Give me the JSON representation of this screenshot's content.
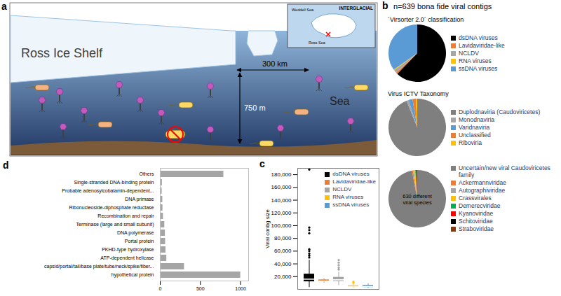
{
  "diagram": {
    "panel": "a",
    "ice_shelf_label": "Ross Ice Shelf",
    "sea_label": "Sea",
    "distance_label": "300 km",
    "depth_label": "750 m",
    "inset": {
      "title": "INTERGLACIAL",
      "labels": [
        "Weddell Sea",
        "Ross Sea"
      ]
    }
  },
  "panel_b": {
    "panel": "b",
    "title": "n=639 bona fide viral contigs"
  },
  "chart_data": [
    {
      "type": "pie",
      "title": "´Virsorter 2.0´ classification",
      "categories": [
        "dsDNA viruses",
        "Lavidaviridae-like",
        "NCLDV",
        "RNA viruses",
        "ssDNA viruses"
      ],
      "values": [
        398,
        6,
        10,
        3,
        222
      ],
      "colors": [
        "#000000",
        "#ED7D31",
        "#A5A5A5",
        "#FFC000",
        "#5B9BD5"
      ],
      "legend": "right"
    },
    {
      "type": "pie",
      "title": "Virus ICTV Taxonomy",
      "categories": [
        "Duplodnaviria (Caudoviricetes)",
        "Monodnaviria",
        "Varidnaviria",
        "Unclassified",
        "Riboviria"
      ],
      "values": [
        600,
        8,
        14,
        12,
        5
      ],
      "colors": [
        "#7F7F7F",
        "#A5A5A5",
        "#5B9BD5",
        "#ED7D31",
        "#FFC000"
      ],
      "legend": "right"
    },
    {
      "type": "pie",
      "annotation": "630 different viral species",
      "categories": [
        "Uncertain/new viral Caudoviricetes family",
        "Ackermannviridae",
        "Autographiviridae",
        "Crassvirales",
        "Demerecviridae",
        "Kyanoviridae",
        "Schitoviridae",
        "Straboviridae"
      ],
      "values": [
        620,
        4,
        3,
        5,
        2,
        2,
        2,
        1
      ],
      "colors": [
        "#7F7F7F",
        "#ED7D31",
        "#A5A5A5",
        "#FFC000",
        "#00B050",
        "#FF0000",
        "#000000",
        "#843C0C"
      ],
      "legend": "right"
    },
    {
      "type": "box",
      "panel": "c",
      "ylabel": "Viral contig size",
      "ylim": [
        0,
        190000
      ],
      "yticks": [
        {
          "value": 20000,
          "label": "20,000"
        },
        {
          "value": 40000,
          "label": "40,000"
        },
        {
          "value": 60000,
          "label": "60,000"
        },
        {
          "value": 80000,
          "label": "80,000"
        },
        {
          "value": 100000,
          "label": "100,000"
        },
        {
          "value": 120000,
          "label": "120,000"
        },
        {
          "value": 140000,
          "label": "140,000"
        },
        {
          "value": 160000,
          "label": "160,000"
        },
        {
          "value": 180000,
          "label": "180,000"
        }
      ],
      "tick_labels": "y",
      "legend": "top-right",
      "series": [
        {
          "name": "dsDNA viruses",
          "color": "#000000",
          "whisker_low": 3000,
          "q1": 12000,
          "median": 16000,
          "q3": 24000,
          "whisker_high": 46000,
          "outliers": [
            50000,
            53000,
            56000,
            60000,
            63000,
            88000,
            93000,
            97000,
            188000
          ]
        },
        {
          "name": "Lavidaviridae-like",
          "color": "#ED7D31",
          "whisker_low": 10000,
          "q1": 12000,
          "median": 13000,
          "q3": 15000,
          "whisker_high": 16500,
          "outliers": []
        },
        {
          "name": "NCLDV",
          "color": "#A5A5A5",
          "whisker_low": 6000,
          "q1": 12500,
          "median": 15000,
          "q3": 19000,
          "whisker_high": 27000,
          "outliers": [
            31000,
            34000,
            38000,
            42000,
            46000
          ]
        },
        {
          "name": "RNA viruses",
          "color": "#FFC000",
          "whisker_low": 2000,
          "q1": 3500,
          "median": 5000,
          "q3": 6500,
          "whisker_high": 8500,
          "outliers": [
            10500,
            12000
          ]
        },
        {
          "name": "ssDNA viruses",
          "color": "#5B9BD5",
          "whisker_low": 1500,
          "q1": 3000,
          "median": 4500,
          "q3": 6500,
          "whisker_high": 9000,
          "outliers": []
        }
      ]
    },
    {
      "type": "bar",
      "panel": "d",
      "orientation": "horizontal",
      "categories": [
        "Others",
        "Single-stranded DNA-binding protein",
        "Probable adenosylcobalamin-dependent...",
        "DNA primase",
        "Ribonucleoside-diphosphate reductase",
        "Recombination and repair",
        "Terminase (large and small subunit)",
        "DNA polymerase",
        "Portal protein",
        "PKHD-type hydroxylase",
        "ATP-dependent helicase",
        "capsid/portal/tail/base plate/tube/neck/spike/fiber...",
        "hypothetical protein"
      ],
      "values": [
        790,
        25,
        22,
        30,
        32,
        38,
        55,
        62,
        65,
        70,
        80,
        300,
        1000
      ],
      "color": "#A5A5A5",
      "xlim": [
        0,
        1100
      ],
      "xticks": [
        0,
        500,
        1000
      ]
    }
  ]
}
